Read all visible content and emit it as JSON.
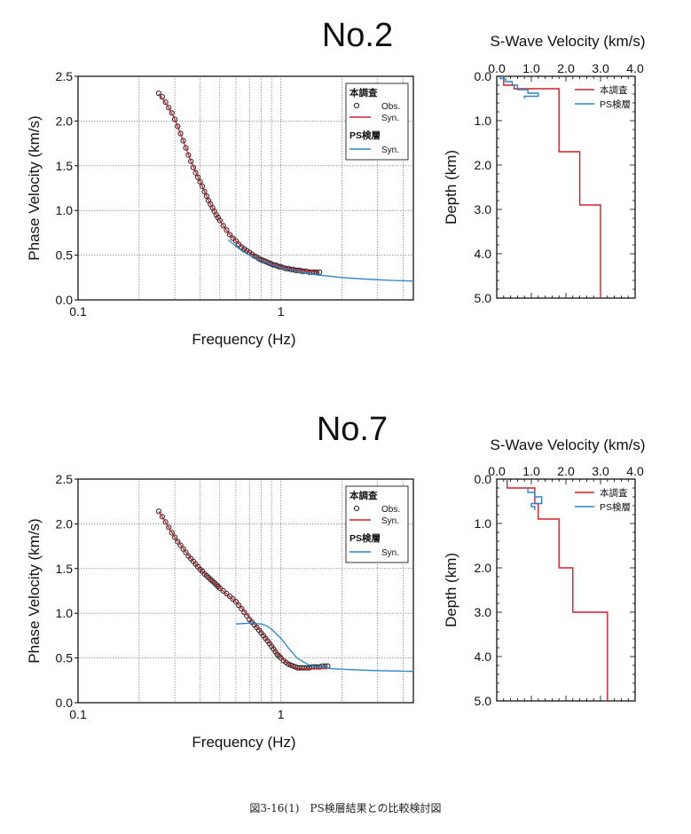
{
  "caption": "図3-16(1)　PS検層結果との比較検討図",
  "colors": {
    "obs": "#222222",
    "syn": "#d21f2b",
    "ps": "#2a86c8",
    "grid": "#666666"
  },
  "panels": [
    {
      "site_title": "No.2",
      "dispersion": {
        "ylabel": "Phase Velocity (km/s)",
        "xlabel": "Frequency (Hz)",
        "xticks": [
          "0.1",
          "1"
        ],
        "yticks": [
          "0.0",
          "0.5",
          "1.0",
          "1.5",
          "2.0",
          "2.5"
        ],
        "legend": {
          "group1": "本調査",
          "obs": "Obs.",
          "syn": "Syn.",
          "group2": "PS検層",
          "ps_syn": "Syn."
        }
      },
      "profile": {
        "title": "S-Wave Velocity (km/s)",
        "ylabel": "Depth (km)",
        "xticks": [
          "0.0",
          "1.0",
          "2.0",
          "3.0",
          "4.0"
        ],
        "yticks": [
          "0.0",
          "1.0",
          "2.0",
          "3.0",
          "4.0",
          "5.0"
        ],
        "legend": {
          "this": "本調査",
          "ps": "PS検層"
        }
      }
    },
    {
      "site_title": "No.7",
      "dispersion": {
        "ylabel": "Phase Velocity (km/s)",
        "xlabel": "Frequency (Hz)",
        "xticks": [
          "0.1",
          "1"
        ],
        "yticks": [
          "0.0",
          "0.5",
          "1.0",
          "1.5",
          "2.0",
          "2.5"
        ],
        "legend": {
          "group1": "本調査",
          "obs": "Obs.",
          "syn": "Syn.",
          "group2": "PS検層",
          "ps_syn": "Syn."
        }
      },
      "profile": {
        "title": "S-Wave Velocity (km/s)",
        "ylabel": "Depth (km)",
        "xticks": [
          "0.0",
          "1.0",
          "2.0",
          "3.0",
          "4.0"
        ],
        "yticks": [
          "0.0",
          "1.0",
          "2.0",
          "3.0",
          "4.0",
          "5.0"
        ],
        "legend": {
          "this": "本調査",
          "ps": "PS検層"
        }
      }
    }
  ],
  "chart_data": [
    {
      "type": "scatter",
      "title": "No.2",
      "xlabel": "Frequency (Hz)",
      "ylabel": "Phase Velocity (km/s)",
      "x_scale": "log",
      "xlim": [
        0.1,
        4.5
      ],
      "ylim": [
        0,
        2.5
      ],
      "grid": true,
      "legend_position": "top-right",
      "series": [
        {
          "name": "Obs.",
          "kind": "markers",
          "x": [
            0.25,
            0.26,
            0.27,
            0.28,
            0.29,
            0.3,
            0.31,
            0.32,
            0.33,
            0.34,
            0.35,
            0.36,
            0.37,
            0.38,
            0.39,
            0.4,
            0.41,
            0.42,
            0.43,
            0.44,
            0.45,
            0.46,
            0.47,
            0.48,
            0.49,
            0.5,
            0.52,
            0.54,
            0.56,
            0.58,
            0.6,
            0.62,
            0.64,
            0.66,
            0.68,
            0.7,
            0.72,
            0.74,
            0.76,
            0.78,
            0.8,
            0.82,
            0.84,
            0.86,
            0.88,
            0.9,
            0.92,
            0.94,
            0.96,
            0.98,
            1.0,
            1.03,
            1.06,
            1.09,
            1.12,
            1.15,
            1.18,
            1.21,
            1.24,
            1.27,
            1.3,
            1.34,
            1.38,
            1.42,
            1.46,
            1.5,
            1.55
          ],
          "y": [
            2.31,
            2.27,
            2.21,
            2.15,
            2.09,
            2.02,
            1.94,
            1.86,
            1.78,
            1.7,
            1.62,
            1.55,
            1.48,
            1.42,
            1.37,
            1.32,
            1.27,
            1.21,
            1.16,
            1.11,
            1.07,
            1.03,
            0.99,
            0.95,
            0.92,
            0.89,
            0.83,
            0.78,
            0.73,
            0.69,
            0.66,
            0.62,
            0.59,
            0.57,
            0.55,
            0.53,
            0.51,
            0.49,
            0.48,
            0.46,
            0.45,
            0.44,
            0.43,
            0.42,
            0.41,
            0.4,
            0.39,
            0.39,
            0.38,
            0.37,
            0.37,
            0.36,
            0.35,
            0.35,
            0.34,
            0.34,
            0.33,
            0.33,
            0.33,
            0.32,
            0.32,
            0.32,
            0.31,
            0.31,
            0.31,
            0.31,
            0.31
          ]
        },
        {
          "name": "Syn.",
          "kind": "line",
          "group": "本調査",
          "x": [
            0.25,
            0.28,
            0.3,
            0.33,
            0.36,
            0.4,
            0.44,
            0.48,
            0.52,
            0.56,
            0.6,
            0.66,
            0.72,
            0.8,
            0.88,
            0.96,
            1.05,
            1.15,
            1.25,
            1.4,
            1.55
          ],
          "y": [
            2.31,
            2.15,
            2.02,
            1.78,
            1.55,
            1.32,
            1.11,
            0.95,
            0.83,
            0.73,
            0.66,
            0.57,
            0.51,
            0.45,
            0.41,
            0.38,
            0.36,
            0.34,
            0.33,
            0.32,
            0.31
          ]
        },
        {
          "name": "Syn.",
          "kind": "line",
          "group": "PS検層",
          "x": [
            0.55,
            0.6,
            0.65,
            0.7,
            0.8,
            0.9,
            1.0,
            1.2,
            1.5,
            2.0,
            2.5,
            3.0,
            3.5,
            4.0,
            4.5
          ],
          "y": [
            0.67,
            0.6,
            0.54,
            0.5,
            0.44,
            0.39,
            0.36,
            0.32,
            0.28,
            0.25,
            0.235,
            0.225,
            0.218,
            0.214,
            0.21
          ]
        }
      ]
    },
    {
      "type": "line",
      "title": "No.2",
      "xlabel": "S-Wave Velocity (km/s)",
      "ylabel": "Depth (km)",
      "xlim": [
        0,
        4
      ],
      "ylim": [
        5,
        0
      ],
      "legend_position": "top-right",
      "series": [
        {
          "name": "本調査",
          "x": [
            0.2,
            0.2,
            0.5,
            0.5,
            1.8,
            1.8,
            2.4,
            2.4,
            3.0,
            3.0
          ],
          "y": [
            0,
            0.2,
            0.2,
            0.28,
            0.28,
            1.7,
            1.7,
            2.9,
            2.9,
            5.0
          ]
        },
        {
          "name": "PS検層",
          "x": [
            0.1,
            0.1,
            0.25,
            0.25,
            0.45,
            0.45,
            0.6,
            0.6,
            0.9,
            0.9,
            1.2,
            1.2,
            0.8,
            0.8
          ],
          "y": [
            0,
            0.05,
            0.05,
            0.12,
            0.12,
            0.2,
            0.2,
            0.3,
            0.3,
            0.38,
            0.38,
            0.45,
            0.45,
            0.5
          ]
        }
      ]
    },
    {
      "type": "scatter",
      "title": "No.7",
      "xlabel": "Frequency (Hz)",
      "ylabel": "Phase Velocity (km/s)",
      "x_scale": "log",
      "xlim": [
        0.1,
        4.5
      ],
      "ylim": [
        0,
        2.5
      ],
      "grid": true,
      "legend_position": "top-right",
      "series": [
        {
          "name": "Obs.",
          "kind": "markers",
          "x": [
            0.25,
            0.26,
            0.27,
            0.28,
            0.29,
            0.3,
            0.31,
            0.32,
            0.33,
            0.34,
            0.35,
            0.36,
            0.37,
            0.38,
            0.39,
            0.4,
            0.41,
            0.42,
            0.43,
            0.44,
            0.45,
            0.46,
            0.47,
            0.48,
            0.49,
            0.5,
            0.52,
            0.54,
            0.56,
            0.58,
            0.6,
            0.62,
            0.64,
            0.66,
            0.68,
            0.7,
            0.72,
            0.74,
            0.76,
            0.78,
            0.8,
            0.82,
            0.84,
            0.86,
            0.88,
            0.9,
            0.92,
            0.94,
            0.96,
            0.98,
            1.0,
            1.03,
            1.06,
            1.09,
            1.12,
            1.15,
            1.18,
            1.21,
            1.24,
            1.27,
            1.3,
            1.34,
            1.38,
            1.42,
            1.46,
            1.5,
            1.55,
            1.6,
            1.65,
            1.7
          ],
          "y": [
            2.14,
            2.08,
            2.02,
            1.96,
            1.9,
            1.85,
            1.8,
            1.76,
            1.72,
            1.68,
            1.64,
            1.61,
            1.58,
            1.55,
            1.52,
            1.49,
            1.47,
            1.44,
            1.42,
            1.4,
            1.38,
            1.36,
            1.34,
            1.32,
            1.3,
            1.28,
            1.25,
            1.22,
            1.19,
            1.16,
            1.13,
            1.09,
            1.05,
            1.01,
            0.97,
            0.93,
            0.9,
            0.87,
            0.84,
            0.81,
            0.78,
            0.75,
            0.72,
            0.69,
            0.66,
            0.63,
            0.6,
            0.57,
            0.54,
            0.52,
            0.5,
            0.47,
            0.45,
            0.43,
            0.42,
            0.41,
            0.4,
            0.39,
            0.39,
            0.39,
            0.39,
            0.39,
            0.39,
            0.4,
            0.4,
            0.4,
            0.4,
            0.41,
            0.41,
            0.41
          ]
        },
        {
          "name": "Syn.",
          "kind": "line",
          "group": "本調査",
          "x": [
            0.25,
            0.28,
            0.3,
            0.33,
            0.36,
            0.4,
            0.45,
            0.5,
            0.55,
            0.6,
            0.66,
            0.72,
            0.8,
            0.88,
            0.96,
            1.05,
            1.15,
            1.25,
            1.4,
            1.55,
            1.7
          ],
          "y": [
            2.14,
            1.96,
            1.85,
            1.72,
            1.61,
            1.49,
            1.38,
            1.28,
            1.2,
            1.13,
            1.02,
            0.91,
            0.79,
            0.67,
            0.55,
            0.46,
            0.4,
            0.38,
            0.38,
            0.38,
            0.38
          ]
        },
        {
          "name": "Syn.",
          "kind": "line",
          "group": "PS検層",
          "x": [
            0.6,
            0.7,
            0.8,
            0.85,
            0.9,
            1.0,
            1.1,
            1.2,
            1.35,
            1.5,
            1.8,
            2.2,
            2.8,
            3.5,
            4.5
          ],
          "y": [
            0.88,
            0.89,
            0.88,
            0.86,
            0.82,
            0.72,
            0.6,
            0.5,
            0.43,
            0.4,
            0.38,
            0.37,
            0.36,
            0.355,
            0.35
          ]
        }
      ]
    },
    {
      "type": "line",
      "title": "No.7",
      "xlabel": "S-Wave Velocity (km/s)",
      "ylabel": "Depth (km)",
      "xlim": [
        0,
        4
      ],
      "ylim": [
        5,
        0
      ],
      "legend_position": "top-right",
      "series": [
        {
          "name": "本調査",
          "x": [
            0.3,
            0.3,
            1.1,
            1.1,
            1.2,
            1.2,
            1.4,
            1.4,
            1.8,
            1.8,
            2.2,
            2.2,
            3.2,
            3.2
          ],
          "y": [
            0,
            0.2,
            0.2,
            0.55,
            0.55,
            0.9,
            0.9,
            0.9,
            0.9,
            2.0,
            2.0,
            3.0,
            3.0,
            5.0
          ]
        },
        {
          "name": "PS検層",
          "x": [
            0.9,
            0.9,
            1.1,
            1.1,
            1.3,
            1.3,
            1.0,
            1.0,
            1.1,
            1.1
          ],
          "y": [
            0.2,
            0.3,
            0.3,
            0.4,
            0.4,
            0.55,
            0.55,
            0.62,
            0.62,
            0.7
          ]
        }
      ]
    }
  ]
}
